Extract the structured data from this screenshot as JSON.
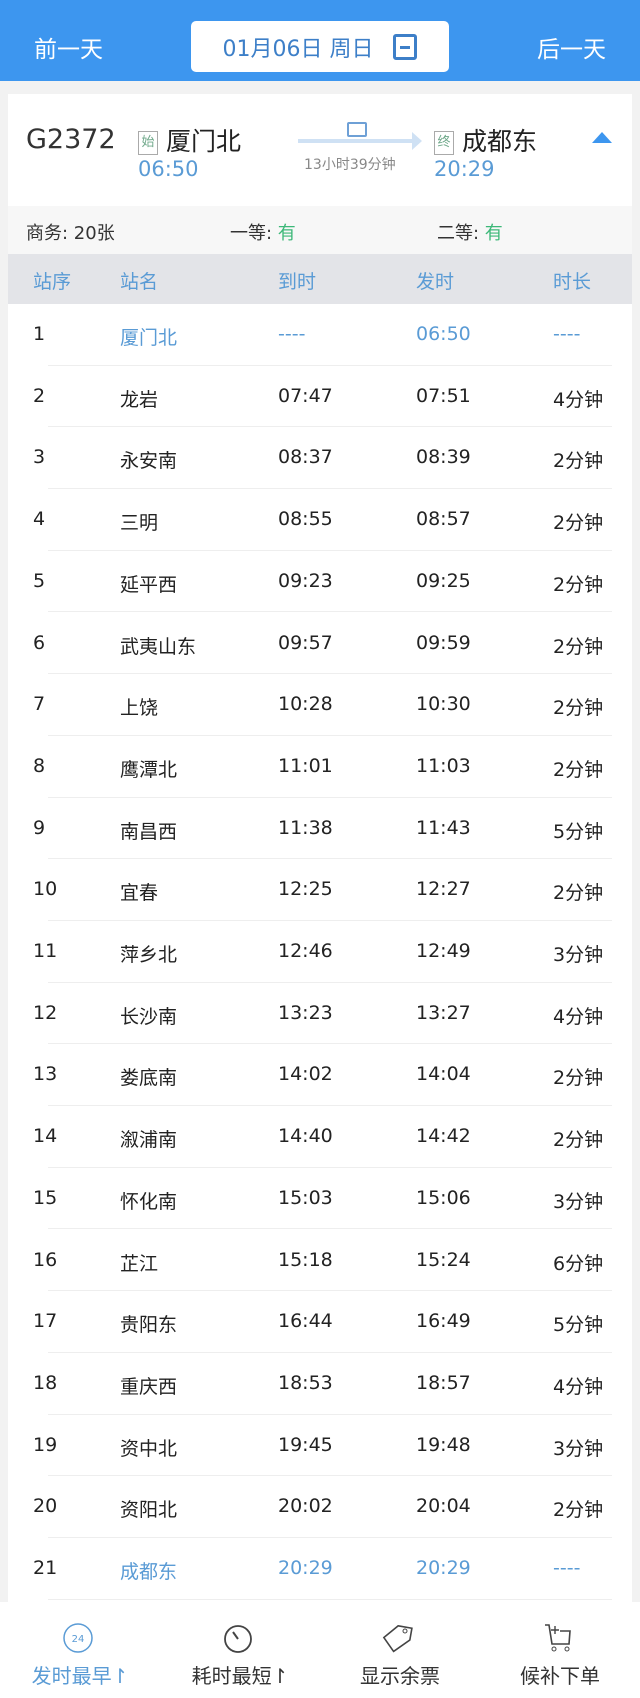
{
  "nav": {
    "prev": "前一天",
    "next": "后一天",
    "date": "01月06日 周日"
  },
  "train": {
    "number": "G2372",
    "from_badge": "始",
    "from": "厦门北",
    "depart": "06:50",
    "to_badge": "终",
    "to": "成都东",
    "arrive": "20:29",
    "duration": "13小时39分钟"
  },
  "seats": [
    {
      "label": "商务: ",
      "value": "20张"
    },
    {
      "label": "一等: ",
      "value": "有"
    },
    {
      "label": "二等: ",
      "value": "有"
    }
  ],
  "table": {
    "headers": [
      "站序",
      "站名",
      "到时",
      "发时",
      "时长"
    ],
    "rows": [
      [
        "1",
        "厦门北",
        "----",
        "06:50",
        "----"
      ],
      [
        "2",
        "龙岩",
        "07:47",
        "07:51",
        "4分钟"
      ],
      [
        "3",
        "永安南",
        "08:37",
        "08:39",
        "2分钟"
      ],
      [
        "4",
        "三明",
        "08:55",
        "08:57",
        "2分钟"
      ],
      [
        "5",
        "延平西",
        "09:23",
        "09:25",
        "2分钟"
      ],
      [
        "6",
        "武夷山东",
        "09:57",
        "09:59",
        "2分钟"
      ],
      [
        "7",
        "上饶",
        "10:28",
        "10:30",
        "2分钟"
      ],
      [
        "8",
        "鹰潭北",
        "11:01",
        "11:03",
        "2分钟"
      ],
      [
        "9",
        "南昌西",
        "11:38",
        "11:43",
        "5分钟"
      ],
      [
        "10",
        "宜春",
        "12:25",
        "12:27",
        "2分钟"
      ],
      [
        "11",
        "萍乡北",
        "12:46",
        "12:49",
        "3分钟"
      ],
      [
        "12",
        "长沙南",
        "13:23",
        "13:27",
        "4分钟"
      ],
      [
        "13",
        "娄底南",
        "14:02",
        "14:04",
        "2分钟"
      ],
      [
        "14",
        "溆浦南",
        "14:40",
        "14:42",
        "2分钟"
      ],
      [
        "15",
        "怀化南",
        "15:03",
        "15:06",
        "3分钟"
      ],
      [
        "16",
        "芷江",
        "15:18",
        "15:24",
        "6分钟"
      ],
      [
        "17",
        "贵阳东",
        "16:44",
        "16:49",
        "5分钟"
      ],
      [
        "18",
        "重庆西",
        "18:53",
        "18:57",
        "4分钟"
      ],
      [
        "19",
        "资中北",
        "19:45",
        "19:48",
        "3分钟"
      ],
      [
        "20",
        "资阳北",
        "20:02",
        "20:04",
        "2分钟"
      ],
      [
        "21",
        "成都东",
        "20:29",
        "20:29",
        "----"
      ]
    ]
  },
  "bottom": [
    {
      "label": "发时最早↾",
      "icon": "clock-24-icon",
      "badge": "24",
      "active": true
    },
    {
      "label": "耗时最短↾",
      "icon": "stopwatch-icon"
    },
    {
      "label": "显示余票",
      "icon": "tag-icon"
    },
    {
      "label": "候补下单",
      "icon": "cart-add-icon"
    }
  ],
  "colors": {
    "header": "#3d96ef",
    "accent": "#5a9bd5",
    "available": "#3cb878"
  }
}
